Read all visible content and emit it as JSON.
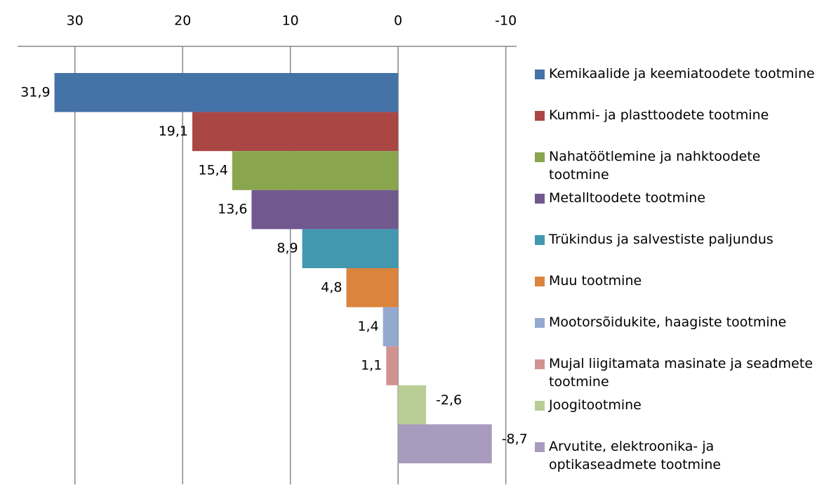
{
  "chart_data": {
    "type": "bar",
    "orientation": "horizontal",
    "xlim": [
      35,
      -11
    ],
    "xticks": [
      30,
      20,
      10,
      0,
      -10
    ],
    "grid": true,
    "series": [
      {
        "name": "Kemikaalide ja keemiatoodete tootmine",
        "color": "#4572a7",
        "values": [
          31.9
        ],
        "value_labels": [
          "31,9"
        ]
      },
      {
        "name": "Kummi- ja plasttoodete tootmine",
        "color": "#aa4643",
        "values": [
          19.1
        ],
        "value_labels": [
          "19,1"
        ]
      },
      {
        "name": "Nahatöötlemine ja nahktoodete tootmine",
        "color": "#89a54e",
        "values": [
          15.4
        ],
        "value_labels": [
          "15,4"
        ]
      },
      {
        "name": "Metalltoodete tootmine",
        "color": "#71588f",
        "values": [
          13.6
        ],
        "value_labels": [
          "13,6"
        ]
      },
      {
        "name": "Trükindus ja salvestiste paljundus",
        "color": "#4198af",
        "values": [
          8.9
        ],
        "value_labels": [
          "8,9"
        ]
      },
      {
        "name": "Muu tootmine",
        "color": "#db843d",
        "values": [
          4.8
        ],
        "value_labels": [
          "4,8"
        ]
      },
      {
        "name": "Mootorsõidukite, haagiste tootmine",
        "color": "#93a9cf",
        "values": [
          1.4
        ],
        "value_labels": [
          "1,4"
        ]
      },
      {
        "name": "Mujal liigitamata masinate ja seadmete tootmine",
        "color": "#d19392",
        "values": [
          1.1
        ],
        "value_labels": [
          "1,1"
        ]
      },
      {
        "name": "Joogitootmine",
        "color": "#b9cd96",
        "values": [
          -2.6
        ],
        "value_labels": [
          "-2,6"
        ]
      },
      {
        "name": "Arvutite, elektroonika- ja optikaseadmete tootmine",
        "color": "#a99bbd",
        "values": [
          -8.7
        ],
        "value_labels": [
          "-8,7"
        ]
      }
    ]
  }
}
